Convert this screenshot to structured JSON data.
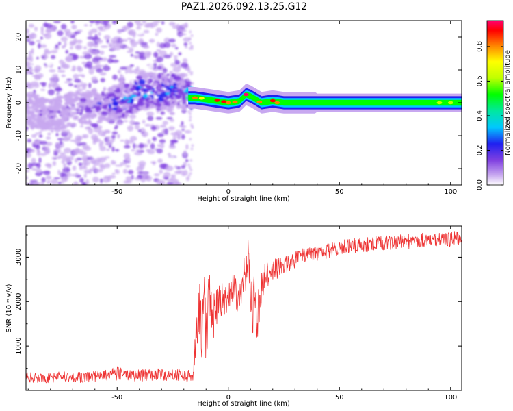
{
  "figure": {
    "title": "PAZ1.2026.092.13.25.G12"
  },
  "chart_data": [
    {
      "type": "heatmap",
      "title": "PAZ1.2026.092.13.25.G12",
      "xlabel": "Height of straight line (km)",
      "ylabel": "Frequency (Hz)",
      "xlim": [
        -91,
        105
      ],
      "ylim": [
        -25,
        25
      ],
      "xticks": [
        -50,
        0,
        50,
        100
      ],
      "yticks": [
        -20,
        -10,
        0,
        10,
        20
      ],
      "xtick_labels": [
        "-50",
        "0",
        "50",
        "100"
      ],
      "ytick_labels": [
        "-20",
        "-10",
        "0",
        "10",
        "20"
      ],
      "colorbar": {
        "label": "Normalized spectral amplitude",
        "range": [
          0,
          0.95
        ],
        "ticks": [
          0.0,
          0.2,
          0.4,
          0.6,
          0.8
        ],
        "tick_labels": [
          "0.0",
          "0.2",
          "0.4",
          "0.6",
          "0.8"
        ],
        "colormap": [
          "#ffffff",
          "#c8a8f0",
          "#8040e0",
          "#2020f0",
          "#00c8ff",
          "#00e8a0",
          "#00ff00",
          "#c0ff00",
          "#ffff00",
          "#ff8000",
          "#ff0000",
          "#ff0070"
        ]
      },
      "ridge": {
        "x": [
          -91,
          -80,
          -70,
          -60,
          -50,
          -45,
          -40,
          -35,
          -30,
          -25,
          -20,
          -18,
          -15,
          -10,
          -5,
          0,
          5,
          8,
          10,
          15,
          20,
          25,
          30,
          50,
          70,
          90,
          105
        ],
        "frequency": [
          -2,
          -4,
          -2,
          -1,
          0,
          1,
          3,
          4,
          3,
          4,
          3,
          1.5,
          1.5,
          1,
          0.5,
          0,
          0.5,
          2.5,
          2,
          0,
          0.5,
          0,
          0,
          0,
          0,
          0,
          0
        ],
        "amplitude": [
          0.1,
          0.15,
          0.15,
          0.2,
          0.25,
          0.3,
          0.35,
          0.3,
          0.3,
          0.3,
          0.25,
          0.45,
          0.5,
          0.6,
          0.75,
          0.85,
          0.7,
          0.95,
          0.8,
          0.75,
          0.7,
          0.55,
          0.5,
          0.45,
          0.45,
          0.5,
          0.55
        ]
      }
    },
    {
      "type": "line",
      "xlabel": "Height of straight line (km)",
      "ylabel": "SNR (10 * v/v)",
      "xlim": [
        -91,
        105
      ],
      "ylim": [
        0,
        3700
      ],
      "xticks": [
        -50,
        0,
        50,
        100
      ],
      "yticks": [
        1000,
        2000,
        3000
      ],
      "xtick_labels": [
        "-50",
        "0",
        "50",
        "100"
      ],
      "ytick_labels": [
        "1000",
        "2000",
        "3000"
      ],
      "series": [
        {
          "name": "SNR",
          "color": "#ee3333",
          "x": [
            -91,
            -85,
            -80,
            -75,
            -70,
            -65,
            -60,
            -55,
            -50,
            -45,
            -40,
            -35,
            -30,
            -25,
            -20,
            -16,
            -14,
            -13,
            -12,
            -11,
            -10,
            -9,
            -8,
            -7,
            -5,
            -3,
            -1,
            0,
            2,
            4,
            6,
            8,
            9,
            10,
            11,
            12,
            13,
            14,
            15,
            17,
            20,
            25,
            30,
            35,
            40,
            45,
            50,
            55,
            60,
            65,
            70,
            75,
            80,
            85,
            90,
            95,
            100,
            105
          ],
          "y": [
            300,
            280,
            290,
            310,
            300,
            290,
            320,
            350,
            380,
            360,
            330,
            340,
            360,
            350,
            340,
            330,
            1500,
            1800,
            1300,
            2300,
            1100,
            1900,
            2400,
            1700,
            1900,
            2100,
            2000,
            2200,
            2300,
            2100,
            2400,
            2600,
            3000,
            2300,
            1700,
            2500,
            1500,
            2000,
            2400,
            2600,
            2700,
            2800,
            2950,
            3050,
            3100,
            3150,
            3200,
            3250,
            3250,
            3300,
            3300,
            3350,
            3350,
            3350,
            3400,
            3400,
            3400,
            3450
          ],
          "noise_amplitude": [
            120,
            120,
            120,
            120,
            120,
            120,
            130,
            140,
            150,
            140,
            140,
            140,
            140,
            140,
            140,
            140,
            600,
            700,
            600,
            700,
            600,
            650,
            650,
            600,
            450,
            400,
            380,
            380,
            380,
            380,
            450,
            500,
            500,
            500,
            500,
            550,
            550,
            500,
            400,
            300,
            250,
            220,
            200,
            180,
            180,
            180,
            180,
            170,
            170,
            170,
            170,
            170,
            170,
            170,
            170,
            170,
            170,
            170
          ]
        }
      ]
    }
  ]
}
